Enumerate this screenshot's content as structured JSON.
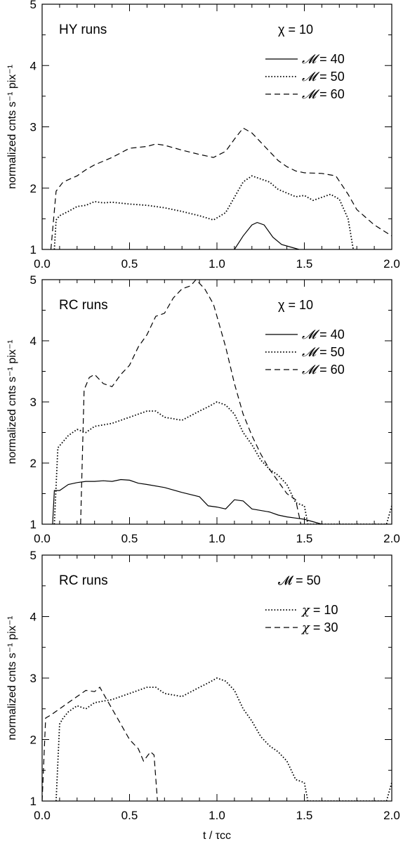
{
  "chart_data": [
    {
      "type": "line",
      "panel_label": "HY runs",
      "param_label": "χ = 10",
      "ylabel": "normalized cnts s⁻¹ pix⁻¹",
      "xlabel": "",
      "xlim": [
        0.0,
        2.0
      ],
      "ylim": [
        1,
        5
      ],
      "x_ticks": [
        "0.0",
        "0.5",
        "1.0",
        "1.5",
        "2.0"
      ],
      "y_ticks": [
        "1",
        "2",
        "3",
        "4",
        "5"
      ],
      "legend_symbol": "𝓜",
      "series": [
        {
          "name": "40",
          "style": "solid",
          "x": [
            1.1,
            1.15,
            1.2,
            1.23,
            1.27,
            1.32,
            1.37,
            1.42,
            1.47
          ],
          "y": [
            1.0,
            1.22,
            1.4,
            1.44,
            1.4,
            1.2,
            1.08,
            1.04,
            1.0
          ]
        },
        {
          "name": "50",
          "style": "dotted",
          "x": [
            0.07,
            0.08,
            0.1,
            0.15,
            0.2,
            0.25,
            0.3,
            0.35,
            0.4,
            0.5,
            0.6,
            0.7,
            0.8,
            0.9,
            0.98,
            1.05,
            1.1,
            1.15,
            1.2,
            1.25,
            1.3,
            1.35,
            1.4,
            1.45,
            1.5,
            1.55,
            1.6,
            1.65,
            1.7,
            1.75,
            1.78
          ],
          "y": [
            1.0,
            1.48,
            1.55,
            1.62,
            1.7,
            1.72,
            1.78,
            1.76,
            1.77,
            1.74,
            1.72,
            1.68,
            1.62,
            1.55,
            1.48,
            1.6,
            1.85,
            2.1,
            2.2,
            2.15,
            2.1,
            1.98,
            1.92,
            1.86,
            1.88,
            1.8,
            1.85,
            1.9,
            1.82,
            1.5,
            1.0
          ]
        },
        {
          "name": "60",
          "style": "dashed",
          "x": [
            0.05,
            0.08,
            0.12,
            0.2,
            0.25,
            0.3,
            0.4,
            0.5,
            0.6,
            0.65,
            0.7,
            0.8,
            0.9,
            0.98,
            1.05,
            1.1,
            1.15,
            1.2,
            1.25,
            1.3,
            1.35,
            1.4,
            1.45,
            1.5,
            1.6,
            1.68,
            1.75,
            1.8,
            1.9,
            2.0
          ],
          "y": [
            1.0,
            1.95,
            2.1,
            2.2,
            2.3,
            2.38,
            2.5,
            2.65,
            2.68,
            2.72,
            2.7,
            2.62,
            2.55,
            2.5,
            2.6,
            2.8,
            2.98,
            2.9,
            2.75,
            2.6,
            2.45,
            2.35,
            2.28,
            2.25,
            2.24,
            2.2,
            1.9,
            1.65,
            1.4,
            1.22
          ]
        }
      ]
    },
    {
      "type": "line",
      "panel_label": "RC runs",
      "param_label": "χ = 10",
      "ylabel": "normalized cnts s⁻¹ pix⁻¹",
      "xlabel": "",
      "xlim": [
        0.0,
        2.0
      ],
      "ylim": [
        1,
        5
      ],
      "x_ticks": [
        "0.0",
        "0.5",
        "1.0",
        "1.5",
        "2.0"
      ],
      "y_ticks": [
        "1",
        "2",
        "3",
        "4",
        "5"
      ],
      "legend_symbol": "𝓜",
      "series": [
        {
          "name": "40",
          "style": "solid",
          "x": [
            0.06,
            0.07,
            0.1,
            0.15,
            0.2,
            0.25,
            0.3,
            0.35,
            0.4,
            0.45,
            0.5,
            0.55,
            0.6,
            0.7,
            0.8,
            0.9,
            0.95,
            1.0,
            1.05,
            1.1,
            1.15,
            1.2,
            1.3,
            1.35,
            1.4,
            1.45,
            1.5,
            1.55,
            1.6
          ],
          "y": [
            1.0,
            1.55,
            1.55,
            1.65,
            1.68,
            1.7,
            1.7,
            1.71,
            1.7,
            1.73,
            1.72,
            1.67,
            1.65,
            1.6,
            1.52,
            1.45,
            1.3,
            1.28,
            1.25,
            1.4,
            1.38,
            1.25,
            1.2,
            1.15,
            1.12,
            1.1,
            1.08,
            1.04,
            1.0
          ]
        },
        {
          "name": "50",
          "style": "dotted",
          "x": [
            0.07,
            0.09,
            0.12,
            0.15,
            0.2,
            0.25,
            0.3,
            0.4,
            0.5,
            0.6,
            0.65,
            0.7,
            0.8,
            0.9,
            0.95,
            1.0,
            1.05,
            1.1,
            1.15,
            1.2,
            1.25,
            1.3,
            1.35,
            1.4,
            1.45,
            1.5,
            1.52,
            1.54,
            1.97,
            1.99,
            2.0
          ],
          "y": [
            1.0,
            2.25,
            2.35,
            2.45,
            2.55,
            2.5,
            2.6,
            2.65,
            2.75,
            2.85,
            2.85,
            2.75,
            2.7,
            2.85,
            2.92,
            3.0,
            2.95,
            2.8,
            2.5,
            2.3,
            2.05,
            1.9,
            1.8,
            1.65,
            1.35,
            1.3,
            1.0,
            1.0,
            1.0,
            1.2,
            1.3
          ]
        },
        {
          "name": "60",
          "style": "dashed",
          "x": [
            0.22,
            0.24,
            0.27,
            0.3,
            0.35,
            0.4,
            0.45,
            0.5,
            0.55,
            0.6,
            0.65,
            0.7,
            0.75,
            0.8,
            0.85,
            0.88,
            0.93,
            0.98,
            1.0,
            1.05,
            1.1,
            1.15,
            1.2,
            1.25,
            1.3,
            1.35,
            1.4,
            1.45,
            1.48
          ],
          "y": [
            1.0,
            3.2,
            3.4,
            3.45,
            3.3,
            3.25,
            3.45,
            3.6,
            3.9,
            4.1,
            4.4,
            4.45,
            4.7,
            4.85,
            4.9,
            5.0,
            4.85,
            4.6,
            4.4,
            3.9,
            3.3,
            2.8,
            2.45,
            2.15,
            1.9,
            1.7,
            1.5,
            1.4,
            1.0
          ]
        }
      ]
    },
    {
      "type": "line",
      "panel_label": "RC runs",
      "param_label": "𝓜 = 50",
      "ylabel": "normalized cnts s⁻¹ pix⁻¹",
      "xlabel": "t / τcc",
      "xlim": [
        0.0,
        2.0
      ],
      "ylim": [
        1,
        5
      ],
      "x_ticks": [
        "0.0",
        "0.5",
        "1.0",
        "1.5",
        "2.0"
      ],
      "y_ticks": [
        "1",
        "2",
        "3",
        "4",
        "5"
      ],
      "legend_symbol": "χ",
      "series": [
        {
          "name": "10",
          "style": "dotted",
          "x": [
            0.08,
            0.1,
            0.12,
            0.15,
            0.2,
            0.25,
            0.3,
            0.4,
            0.5,
            0.6,
            0.65,
            0.7,
            0.8,
            0.9,
            0.95,
            1.0,
            1.05,
            1.1,
            1.15,
            1.2,
            1.25,
            1.3,
            1.35,
            1.4,
            1.45,
            1.5,
            1.52,
            1.54,
            1.97,
            1.99,
            2.0
          ],
          "y": [
            1.0,
            2.25,
            2.35,
            2.45,
            2.55,
            2.5,
            2.6,
            2.65,
            2.75,
            2.85,
            2.85,
            2.75,
            2.7,
            2.85,
            2.92,
            3.0,
            2.95,
            2.8,
            2.5,
            2.3,
            2.05,
            1.9,
            1.8,
            1.65,
            1.35,
            1.3,
            1.0,
            1.0,
            1.0,
            1.2,
            1.3
          ]
        },
        {
          "name": "30",
          "style": "dashed",
          "x": [
            0.0,
            0.02,
            0.05,
            0.1,
            0.15,
            0.2,
            0.25,
            0.3,
            0.33,
            0.36,
            0.4,
            0.45,
            0.5,
            0.55,
            0.58,
            0.62,
            0.64,
            0.66
          ],
          "y": [
            1.0,
            2.35,
            2.4,
            2.5,
            2.6,
            2.7,
            2.8,
            2.78,
            2.85,
            2.7,
            2.5,
            2.25,
            2.0,
            1.85,
            1.65,
            1.8,
            1.75,
            1.0
          ]
        }
      ]
    }
  ]
}
